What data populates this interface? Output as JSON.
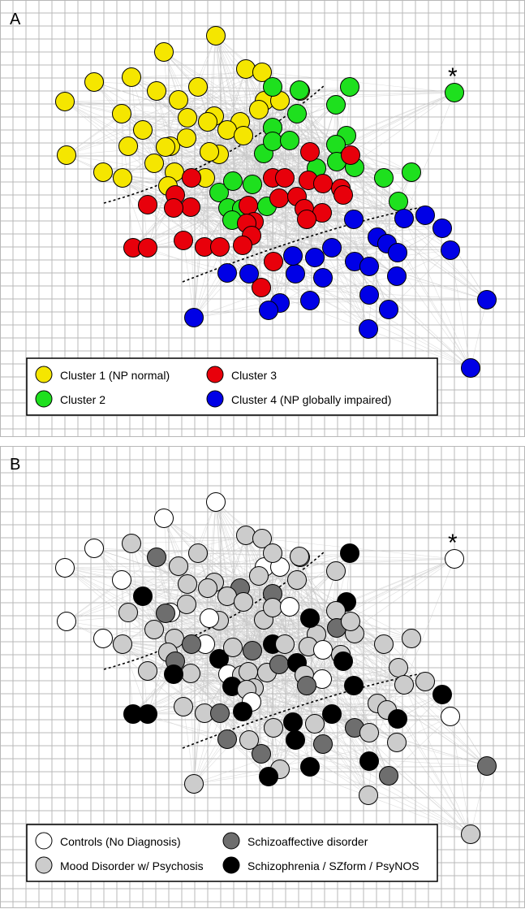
{
  "panels": [
    {
      "letter": "A",
      "marker": "*",
      "legend": [
        {
          "label": "Cluster 1 (NP normal)",
          "color": "#f5e600"
        },
        {
          "label": "Cluster 3",
          "color": "#e8000b"
        },
        {
          "label": "Cluster 2",
          "color": "#1ee01e"
        },
        {
          "label": "Cluster 4 (NP globally impaired)",
          "color": "#0000e6"
        }
      ]
    },
    {
      "letter": "B",
      "marker": "*",
      "legend": [
        {
          "label": "Controls (No Diagnosis)",
          "color": "#ffffff"
        },
        {
          "label": "Schizoaffective disorder",
          "color": "#6e6e6e"
        },
        {
          "label": "Mood Disorder w/ Psychosis",
          "color": "#cccccc"
        },
        {
          "label": "Schizophrenia / SZform / PsyNOS",
          "color": "#000000"
        }
      ]
    }
  ],
  "colors": {
    "grid": "#b8b8b8",
    "edges": "#c8c8c8",
    "divider": "#000000",
    "node_outline": "#000000"
  }
}
